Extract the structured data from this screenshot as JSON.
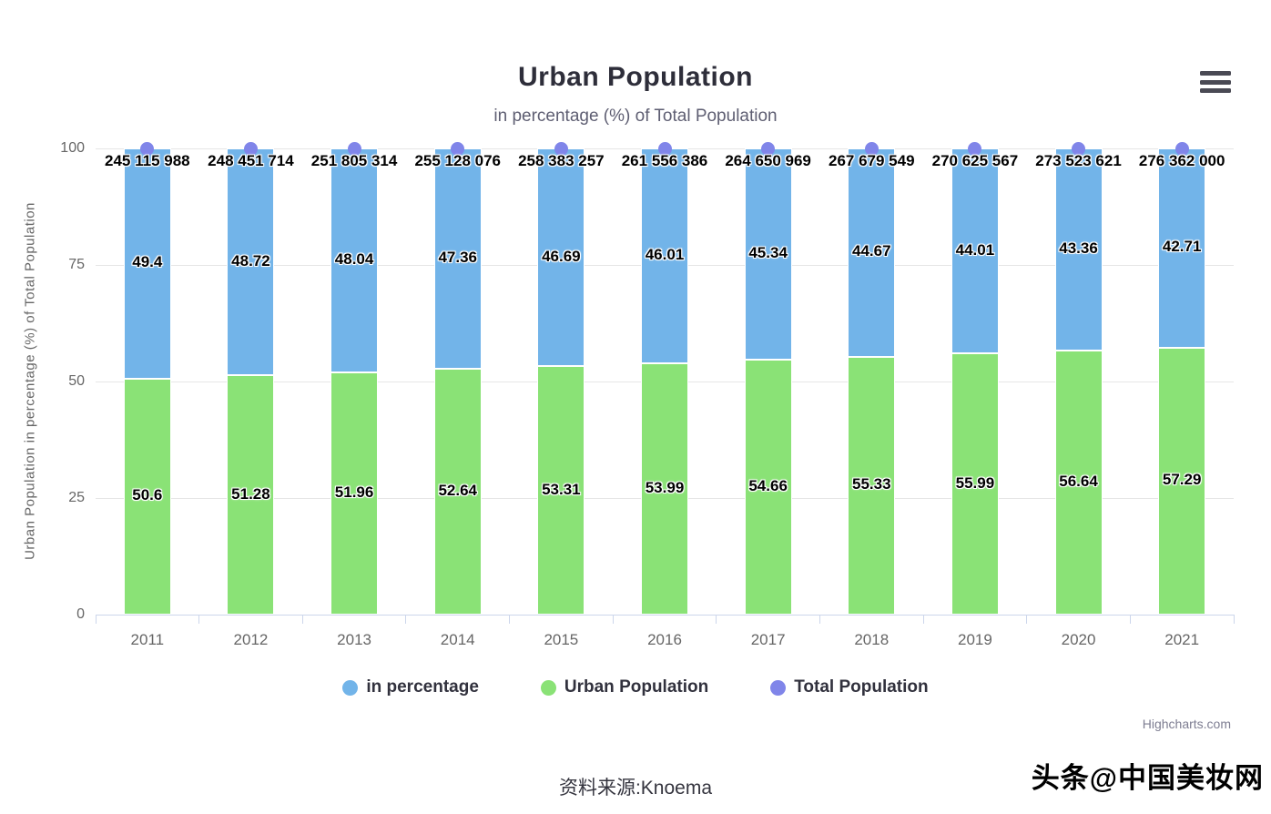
{
  "chart": {
    "title": "Urban Population",
    "subtitle": "in percentage (%) of Total Population",
    "credit": "Highcharts.com"
  },
  "chart_data": {
    "type": "bar",
    "stacking": "normal",
    "title": "Urban Population",
    "subtitle": "in percentage (%) of Total Population",
    "categories": [
      "2011",
      "2012",
      "2013",
      "2014",
      "2015",
      "2016",
      "2017",
      "2018",
      "2019",
      "2020",
      "2021"
    ],
    "xlabel": "",
    "ylabel": "Urban Population in percentage (%) of Total Population",
    "ylim": [
      0,
      100
    ],
    "yticks": [
      0,
      25,
      50,
      75,
      100
    ],
    "grid": true,
    "legend_position": "bottom",
    "series": [
      {
        "name": "Urban Population",
        "type": "column",
        "color": "#8ae276",
        "values": [
          50.6,
          51.28,
          51.96,
          52.64,
          53.31,
          53.99,
          54.66,
          55.33,
          55.99,
          56.64,
          57.29
        ]
      },
      {
        "name": "in percentage",
        "type": "column",
        "color": "#72b4e9",
        "values": [
          49.4,
          48.72,
          48.04,
          47.36,
          46.69,
          46.01,
          45.34,
          44.67,
          44.01,
          43.36,
          42.71
        ]
      },
      {
        "name": "Total Population",
        "type": "scatter",
        "color": "#8085e9",
        "y": 100,
        "labels": [
          "245 115 988",
          "248 451 714",
          "251 805 314",
          "255 128 076",
          "258 383 257",
          "261 556 386",
          "264 650 969",
          "267 679 549",
          "270 625 567",
          "273 523 621",
          "276 362 000"
        ]
      }
    ],
    "legend": [
      {
        "label": "in percentage",
        "color": "#72b4e9"
      },
      {
        "label": "Urban Population",
        "color": "#8ae276"
      },
      {
        "label": "Total Population",
        "color": "#8085e9"
      }
    ]
  },
  "footer": {
    "source_note": "资料来源:Knoema",
    "watermark": "头条@中国美妆网"
  }
}
